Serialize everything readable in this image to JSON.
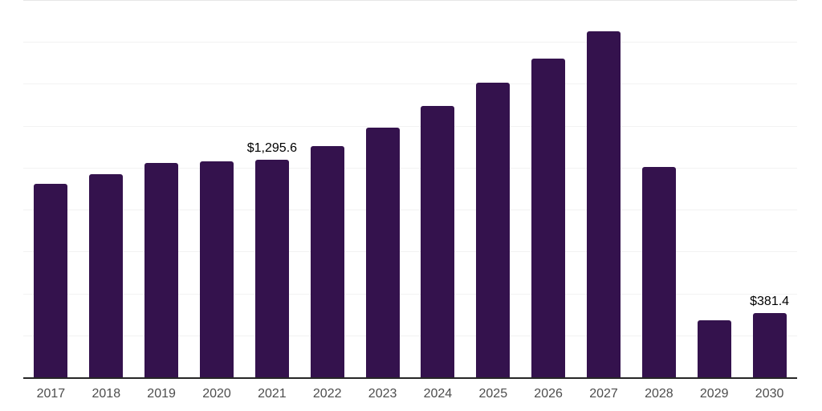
{
  "chart_data": {
    "type": "bar",
    "title": "",
    "xlabel": "",
    "ylabel": "",
    "categories": [
      "2017",
      "2018",
      "2019",
      "2020",
      "2021",
      "2022",
      "2023",
      "2024",
      "2025",
      "2026",
      "2027",
      "2028",
      "2029",
      "2030"
    ],
    "values": [
      1155,
      1210,
      1280,
      1290,
      1295.6,
      1380,
      1490,
      1620,
      1755,
      1900,
      2065,
      1255,
      340,
      381.4
    ],
    "data_labels": [
      null,
      null,
      null,
      null,
      "$1,295.6",
      null,
      null,
      null,
      null,
      null,
      null,
      null,
      null,
      "$381.4"
    ],
    "ylim": [
      0,
      2250
    ],
    "grid_interval": 250,
    "grid": true,
    "legend": false,
    "currency_prefix": "$",
    "style": {
      "bar_color": "#34124d",
      "gridline_color": "#f2f2f2",
      "plot_top_border_color": "#e7e7e7",
      "axis_line_color": "#262626",
      "tick_label_color": "#4d4d4d",
      "data_label_color": "#000000",
      "background_color": "#ffffff"
    }
  }
}
